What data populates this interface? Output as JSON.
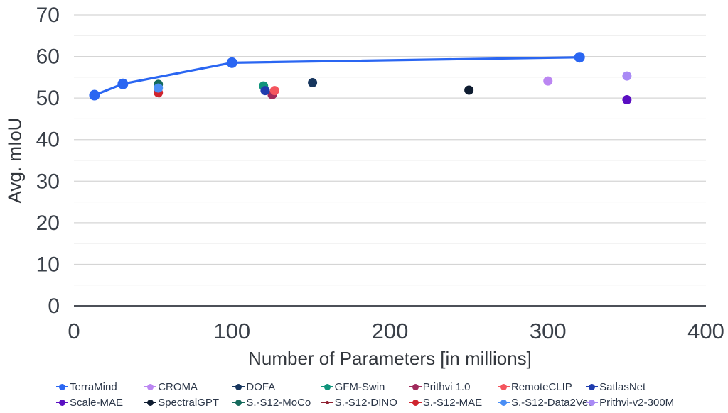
{
  "figure": {
    "background": "#ffffff",
    "tick_text_color": "#3a4049",
    "axis_title_color": "#33373d",
    "legend_text_color": "#2b3648",
    "grid_major_color": "#d5d5d5",
    "grid_minor_color": "#ececec",
    "axis_line_color": "#4c5058"
  },
  "chart_data": {
    "type": "line+scatter",
    "title": "",
    "xlabel": "Number of Parameters [in millions]",
    "ylabel": "Avg. mIoU",
    "xlim": [
      0,
      400
    ],
    "ylim": [
      0,
      70
    ],
    "x_ticks": [
      0,
      100,
      200,
      300,
      400
    ],
    "y_ticks": [
      0,
      10,
      20,
      30,
      40,
      50,
      60,
      70
    ],
    "y_minor_step": 5,
    "grid": "horizontal-only",
    "legend_position": "bottom",
    "series": [
      {
        "name": "TerraMind",
        "type": "line",
        "color": "#2a66f2",
        "z": 10,
        "points": [
          [
            13,
            50.7
          ],
          [
            31,
            53.4
          ],
          [
            100,
            58.5
          ],
          [
            320,
            59.8
          ]
        ]
      },
      {
        "name": "CROMA",
        "type": "scatter",
        "color": "#bb86f2",
        "z": 1,
        "points": [
          [
            300,
            54.1
          ]
        ]
      },
      {
        "name": "DOFA",
        "type": "scatter",
        "color": "#17365e",
        "z": 1,
        "points": [
          [
            151,
            53.7
          ]
        ]
      },
      {
        "name": "GFM-Swin",
        "type": "scatter",
        "color": "#10947c",
        "z": 1,
        "points": [
          [
            120,
            52.9
          ]
        ]
      },
      {
        "name": "Prithvi 1.0",
        "type": "scatter",
        "color": "#a02a5c",
        "z": 2,
        "points": [
          [
            125.5,
            50.8
          ]
        ]
      },
      {
        "name": "RemoteCLIP",
        "type": "scatter",
        "color": "#f4555e",
        "z": 3,
        "points": [
          [
            127,
            51.8
          ]
        ]
      },
      {
        "name": "SatlasNet",
        "type": "scatter",
        "color": "#1f3cae",
        "z": 2,
        "points": [
          [
            121,
            51.8
          ]
        ]
      },
      {
        "name": "Scale-MAE",
        "type": "scatter",
        "color": "#5a0ec2",
        "z": 1,
        "points": [
          [
            350,
            49.6
          ]
        ]
      },
      {
        "name": "SpectralGPT",
        "type": "scatter",
        "color": "#0e1c30",
        "z": 1,
        "points": [
          [
            250,
            51.9
          ]
        ]
      },
      {
        "name": "S.-S12-MoCo",
        "type": "scatter",
        "color": "#156a5c",
        "z": 1,
        "points": [
          [
            53.4,
            53.3
          ]
        ]
      },
      {
        "name": "S.-S12-DINO",
        "type": "scatter",
        "color": "#8e2030",
        "z": 2,
        "small": true,
        "points": [
          [
            53.8,
            50.9
          ]
        ]
      },
      {
        "name": "S.-S12-MAE",
        "type": "scatter",
        "color": "#cf242e",
        "z": 3,
        "points": [
          [
            53.4,
            51.3
          ]
        ]
      },
      {
        "name": "S.-S12-Data2Vec",
        "type": "scatter",
        "color": "#4a8ef5",
        "z": 4,
        "points": [
          [
            53.4,
            52.4
          ]
        ]
      },
      {
        "name": "Prithvi-v2-300M",
        "type": "scatter",
        "color": "#a98af5",
        "z": 1,
        "points": [
          [
            350,
            55.3
          ]
        ]
      }
    ]
  }
}
